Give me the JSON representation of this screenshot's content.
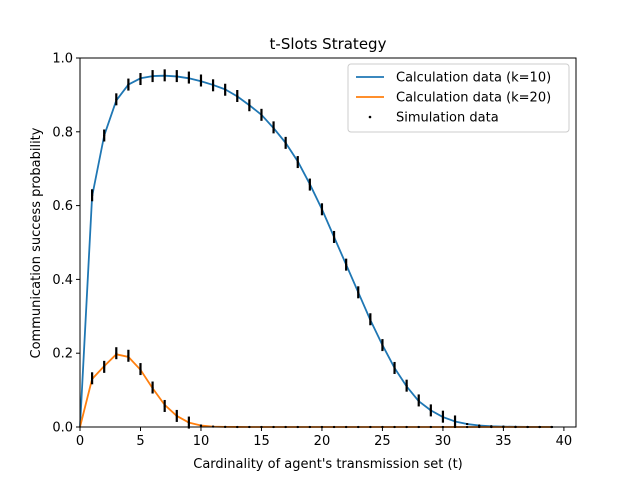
{
  "chart_data": {
    "type": "line",
    "title": "t-Slots Strategy",
    "xlabel": "Cardinality of agent's transmission set (t)",
    "ylabel": "Communication success probability",
    "xlim": [
      0,
      41
    ],
    "ylim": [
      0,
      1.0
    ],
    "xticks": [
      0,
      5,
      10,
      15,
      20,
      25,
      30,
      35,
      40
    ],
    "xtick_labels": [
      "0",
      "5",
      "10",
      "15",
      "20",
      "25",
      "30",
      "35",
      "40"
    ],
    "yticks": [
      0.0,
      0.2,
      0.4,
      0.6,
      0.8,
      1.0
    ],
    "ytick_labels": [
      "0.0",
      "0.2",
      "0.4",
      "0.6",
      "0.8",
      "1.0"
    ],
    "grid": false,
    "legend_position": "top-right",
    "series": [
      {
        "name": "Calculation data (k=10)",
        "kind": "line",
        "color": "#1f77b4",
        "x": [
          0,
          1,
          2,
          3,
          4,
          5,
          6,
          7,
          8,
          9,
          10,
          11,
          12,
          13,
          14,
          15,
          16,
          17,
          18,
          19,
          20,
          21,
          22,
          23,
          24,
          25,
          26,
          27,
          28,
          29,
          30,
          31,
          32,
          33,
          34,
          35,
          36,
          37,
          38,
          39
        ],
        "y": [
          0.0,
          0.625,
          0.79,
          0.885,
          0.928,
          0.945,
          0.951,
          0.952,
          0.95,
          0.945,
          0.937,
          0.927,
          0.915,
          0.896,
          0.872,
          0.846,
          0.81,
          0.77,
          0.72,
          0.658,
          0.59,
          0.515,
          0.44,
          0.365,
          0.29,
          0.222,
          0.16,
          0.11,
          0.07,
          0.045,
          0.027,
          0.015,
          0.008,
          0.004,
          0.002,
          0.001,
          0.0005,
          0.0002,
          0.0001,
          0.0
        ]
      },
      {
        "name": "Calculation data (k=20)",
        "kind": "line",
        "color": "#ff7f0e",
        "x": [
          0,
          1,
          2,
          3,
          4,
          5,
          6,
          7,
          8,
          9,
          10,
          11,
          12,
          13,
          14,
          15,
          16,
          17,
          18,
          19,
          20,
          21,
          22,
          23,
          24,
          25,
          26,
          27,
          28,
          29,
          30,
          31,
          32,
          33,
          34,
          35,
          36,
          37,
          38,
          39
        ],
        "y": [
          0.0,
          0.13,
          0.165,
          0.197,
          0.19,
          0.155,
          0.105,
          0.06,
          0.03,
          0.012,
          0.004,
          0.001,
          0.0003,
          0.0001,
          0,
          0,
          0,
          0,
          0,
          0,
          0,
          0,
          0,
          0,
          0,
          0,
          0,
          0,
          0,
          0,
          0,
          0,
          0,
          0,
          0,
          0,
          0,
          0,
          0,
          0
        ]
      },
      {
        "name": "Simulation data",
        "kind": "errorbar",
        "color": "#000000",
        "x": [
          1,
          2,
          3,
          4,
          5,
          6,
          7,
          8,
          9,
          10,
          11,
          12,
          13,
          14,
          15,
          16,
          17,
          18,
          19,
          20,
          21,
          22,
          23,
          24,
          25,
          26,
          27,
          28,
          29,
          30,
          31,
          32,
          33,
          34,
          35,
          36,
          37,
          38,
          39
        ],
        "y": [
          0.628,
          0.79,
          0.888,
          0.928,
          0.943,
          0.951,
          0.953,
          0.951,
          0.947,
          0.939,
          0.926,
          0.914,
          0.897,
          0.872,
          0.846,
          0.812,
          0.77,
          0.718,
          0.657,
          0.59,
          0.515,
          0.44,
          0.365,
          0.292,
          0.222,
          0.16,
          0.112,
          0.072,
          0.045,
          0.028,
          0.015,
          0.008,
          0.004,
          0.002,
          0.001,
          0.0005,
          0.0002,
          0.0001,
          0.0
        ]
      },
      {
        "name": "",
        "kind": "errorbar",
        "color": "#000000",
        "x": [
          1,
          2,
          3,
          4,
          5,
          6,
          7,
          8,
          9,
          10,
          11,
          12,
          13,
          14,
          15,
          16,
          17,
          18,
          19,
          20,
          21,
          22,
          23,
          24,
          25,
          26,
          27,
          28,
          29,
          30,
          31,
          32,
          33,
          34,
          35,
          36,
          37,
          38,
          39
        ],
        "y": [
          0.132,
          0.163,
          0.2,
          0.193,
          0.157,
          0.107,
          0.057,
          0.03,
          0.012,
          0.004,
          0.001,
          0.0003,
          0,
          0,
          0,
          0,
          0,
          0,
          0,
          0,
          0,
          0,
          0,
          0,
          0,
          0,
          0,
          0,
          0,
          0,
          0,
          0,
          0,
          0,
          0,
          0,
          0,
          0,
          0
        ]
      }
    ]
  }
}
